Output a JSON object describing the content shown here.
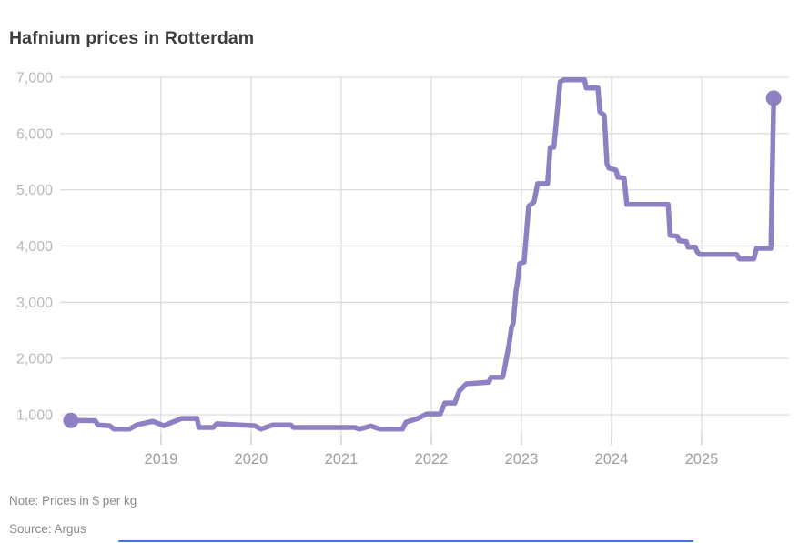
{
  "title": "Hafnium prices in Rotterdam",
  "note": "Note: Prices in $ per kg",
  "source": "Source: Argus",
  "colors": {
    "line": "#8f80c4",
    "grid": "#d9d9d9",
    "tick": "#c6c6c6",
    "y_label": "#b9b9b9",
    "x_label": "#9e9e9e",
    "title": "#3d3d3d",
    "footnote": "#8a8a8a",
    "bottom_bar": "#4571e3"
  },
  "chart_data": {
    "type": "line",
    "title": "Hafnium prices in Rotterdam",
    "xlabel": "",
    "ylabel": "",
    "unit": "$ per kg",
    "grid": true,
    "legend": false,
    "xlim": [
      2017.9,
      2025.97
    ],
    "ylim": [
      645,
      7000
    ],
    "x_ticks": [
      2019,
      2020,
      2021,
      2022,
      2023,
      2024,
      2025
    ],
    "x_tick_labels": [
      "2019",
      "2020",
      "2021",
      "2022",
      "2023",
      "2024",
      "2025"
    ],
    "y_ticks": [
      1000,
      2000,
      3000,
      4000,
      5000,
      6000,
      7000
    ],
    "y_tick_labels": [
      "1,000",
      "2,000",
      "3,000",
      "4,000",
      "5,000",
      "6,000",
      "7,000"
    ],
    "start_value": 900,
    "peak_value": 6955,
    "end_value": 6630,
    "series": [
      {
        "name": "Hafnium price, Rotterdam ($ per kg)",
        "points": [
          [
            2018.0,
            900
          ],
          [
            2018.27,
            895
          ],
          [
            2018.3,
            820
          ],
          [
            2018.43,
            805
          ],
          [
            2018.48,
            745
          ],
          [
            2018.65,
            745
          ],
          [
            2018.73,
            820
          ],
          [
            2018.91,
            885
          ],
          [
            2019.03,
            805
          ],
          [
            2019.23,
            935
          ],
          [
            2019.4,
            935
          ],
          [
            2019.42,
            775
          ],
          [
            2019.58,
            775
          ],
          [
            2019.62,
            840
          ],
          [
            2020.04,
            805
          ],
          [
            2020.11,
            745
          ],
          [
            2020.24,
            820
          ],
          [
            2020.44,
            820
          ],
          [
            2020.47,
            775
          ],
          [
            2021.15,
            775
          ],
          [
            2021.2,
            745
          ],
          [
            2021.33,
            800
          ],
          [
            2021.43,
            745
          ],
          [
            2021.68,
            745
          ],
          [
            2021.72,
            870
          ],
          [
            2021.85,
            935
          ],
          [
            2021.95,
            1015
          ],
          [
            2022.1,
            1015
          ],
          [
            2022.15,
            1210
          ],
          [
            2022.26,
            1210
          ],
          [
            2022.31,
            1420
          ],
          [
            2022.39,
            1550
          ],
          [
            2022.64,
            1580
          ],
          [
            2022.66,
            1665
          ],
          [
            2022.79,
            1665
          ],
          [
            2022.81,
            1795
          ],
          [
            2022.86,
            2230
          ],
          [
            2022.89,
            2555
          ],
          [
            2022.91,
            2635
          ],
          [
            2022.94,
            3200
          ],
          [
            2022.96,
            3395
          ],
          [
            2022.98,
            3685
          ],
          [
            2023.03,
            3715
          ],
          [
            2023.08,
            4705
          ],
          [
            2023.14,
            4785
          ],
          [
            2023.18,
            5110
          ],
          [
            2023.29,
            5110
          ],
          [
            2023.32,
            5755
          ],
          [
            2023.36,
            5755
          ],
          [
            2023.43,
            6920
          ],
          [
            2023.47,
            6955
          ],
          [
            2023.7,
            6955
          ],
          [
            2023.72,
            6810
          ],
          [
            2023.85,
            6810
          ],
          [
            2023.87,
            6390
          ],
          [
            2023.92,
            6325
          ],
          [
            2023.95,
            5465
          ],
          [
            2023.97,
            5385
          ],
          [
            2024.05,
            5350
          ],
          [
            2024.07,
            5225
          ],
          [
            2024.14,
            5210
          ],
          [
            2024.17,
            4740
          ],
          [
            2024.63,
            4740
          ],
          [
            2024.65,
            4190
          ],
          [
            2024.73,
            4175
          ],
          [
            2024.75,
            4095
          ],
          [
            2024.83,
            4080
          ],
          [
            2024.85,
            3980
          ],
          [
            2024.93,
            3980
          ],
          [
            2024.95,
            3900
          ],
          [
            2024.98,
            3850
          ],
          [
            2025.39,
            3850
          ],
          [
            2025.42,
            3770
          ],
          [
            2025.58,
            3770
          ],
          [
            2025.61,
            3960
          ],
          [
            2025.77,
            3960
          ],
          [
            2025.8,
            6630
          ]
        ]
      }
    ]
  }
}
